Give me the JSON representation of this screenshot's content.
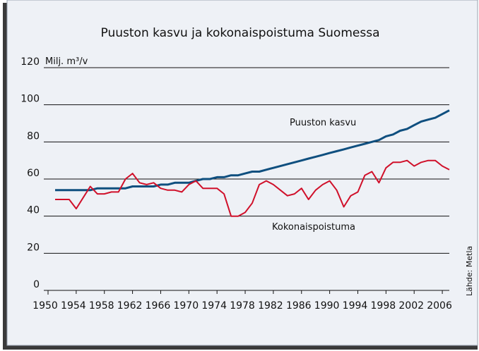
{
  "chart_data": {
    "type": "line",
    "title": "Puuston kasvu ja kokonaispoistuma Suomessa",
    "y_label": "Milj. m³/v",
    "source": "Lähde: Metla",
    "annotations": [
      "Puuston kasvu",
      "Kokonaispoistuma"
    ],
    "x": [
      1951,
      1952,
      1953,
      1954,
      1955,
      1956,
      1957,
      1958,
      1959,
      1960,
      1961,
      1962,
      1963,
      1964,
      1965,
      1966,
      1967,
      1968,
      1969,
      1970,
      1971,
      1972,
      1973,
      1974,
      1975,
      1976,
      1977,
      1978,
      1979,
      1980,
      1981,
      1982,
      1983,
      1984,
      1985,
      1986,
      1987,
      1988,
      1989,
      1990,
      1991,
      1992,
      1993,
      1994,
      1995,
      1996,
      1997,
      1998,
      1999,
      2000,
      2001,
      2002,
      2003,
      2004,
      2005,
      2006,
      2007
    ],
    "series": [
      {
        "name": "Puuston kasvu",
        "color": "#0f4f7f",
        "values": [
          54,
          54,
          54,
          54,
          54,
          54,
          55,
          55,
          55,
          55,
          55,
          56,
          56,
          56,
          56,
          57,
          57,
          58,
          58,
          58,
          59,
          60,
          60,
          61,
          61,
          62,
          62,
          63,
          64,
          64,
          65,
          66,
          67,
          68,
          69,
          70,
          71,
          72,
          73,
          74,
          75,
          76,
          77,
          78,
          79,
          80,
          81,
          83,
          84,
          86,
          87,
          89,
          91,
          92,
          93,
          95,
          97
        ]
      },
      {
        "name": "Kokonaispoistuma",
        "color": "#d0102a",
        "values": [
          49,
          49,
          49,
          44,
          50,
          56,
          52,
          52,
          53,
          53,
          60,
          63,
          58,
          57,
          58,
          55,
          54,
          54,
          53,
          57,
          59,
          55,
          55,
          55,
          52,
          40,
          40,
          42,
          47,
          57,
          59,
          57,
          54,
          51,
          52,
          55,
          49,
          54,
          57,
          59,
          54,
          45,
          51,
          53,
          62,
          64,
          58,
          66,
          69,
          69,
          70,
          67,
          69,
          70,
          70,
          67,
          65
        ]
      }
    ],
    "xlim": [
      1950,
      2008
    ],
    "xticks": [
      1950,
      1954,
      1958,
      1962,
      1966,
      1970,
      1974,
      1978,
      1982,
      1986,
      1990,
      1994,
      1998,
      2002,
      2006
    ],
    "ylim": [
      0,
      120
    ],
    "yticks": [
      0,
      20,
      40,
      60,
      80,
      100,
      120
    ],
    "grid": true
  }
}
